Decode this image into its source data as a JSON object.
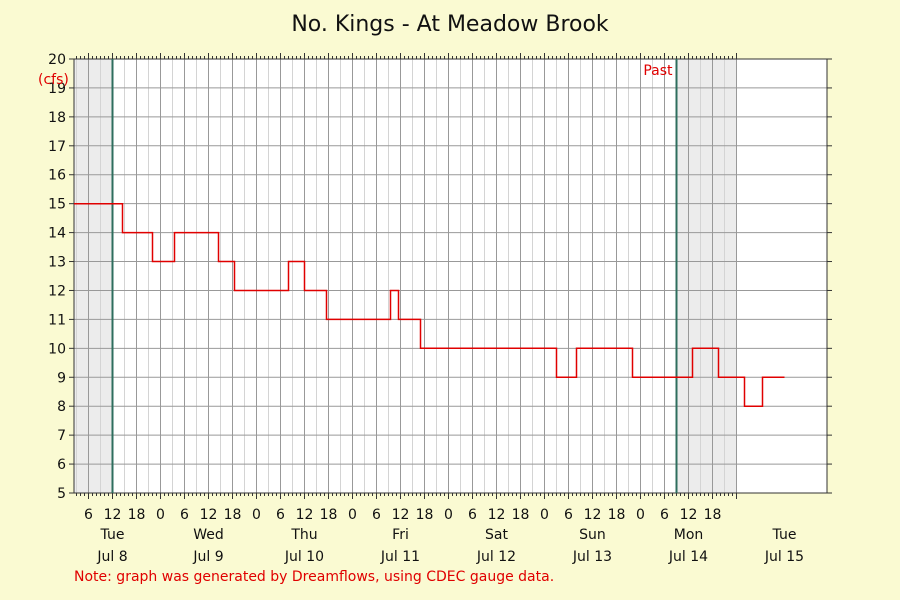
{
  "chart_data": {
    "type": "line",
    "title": "No. Kings - At Meadow Brook",
    "ylabel": "(cfs)",
    "ylim": [
      5,
      20
    ],
    "yticks": [
      5,
      6,
      7,
      8,
      9,
      10,
      11,
      12,
      13,
      14,
      15,
      16,
      17,
      18,
      19,
      20
    ],
    "xlim_hours": [
      -15,
      141
    ],
    "grid": true,
    "past_label": "Past",
    "current_markers_hours": [
      0,
      141
    ],
    "shaded_regions_hours": [
      [
        -15,
        0
      ],
      [
        141,
        156
      ]
    ],
    "hour_ticks": [
      {
        "h": -6,
        "label": "6"
      },
      {
        "h": 0,
        "label": "12"
      },
      {
        "h": 6,
        "label": "18"
      },
      {
        "h": 12,
        "label": "0"
      },
      {
        "h": 18,
        "label": "6"
      },
      {
        "h": 24,
        "label": "12"
      },
      {
        "h": 30,
        "label": "18"
      },
      {
        "h": 36,
        "label": "0"
      },
      {
        "h": 42,
        "label": "6"
      },
      {
        "h": 48,
        "label": "12"
      },
      {
        "h": 54,
        "label": "18"
      },
      {
        "h": 60,
        "label": "0"
      },
      {
        "h": 66,
        "label": "6"
      },
      {
        "h": 72,
        "label": "12"
      },
      {
        "h": 78,
        "label": "18"
      },
      {
        "h": 84,
        "label": "0"
      },
      {
        "h": 90,
        "label": "6"
      },
      {
        "h": 96,
        "label": "12"
      },
      {
        "h": 102,
        "label": "18"
      },
      {
        "h": 108,
        "label": "0"
      },
      {
        "h": 114,
        "label": "6"
      },
      {
        "h": 120,
        "label": "12"
      },
      {
        "h": 126,
        "label": "18"
      },
      {
        "h": 132,
        "label": "0"
      },
      {
        "h": 138,
        "label": "6"
      },
      {
        "h": 144,
        "label": "12"
      },
      {
        "h": 150,
        "label": "18"
      }
    ],
    "day_labels": [
      {
        "h": 0,
        "day": "Tue",
        "date": "Jul 8"
      },
      {
        "h": 24,
        "day": "Wed",
        "date": "Jul 9"
      },
      {
        "h": 48,
        "day": "Thu",
        "date": "Jul 10"
      },
      {
        "h": 72,
        "day": "Fri",
        "date": "Jul 11"
      },
      {
        "h": 96,
        "day": "Sat",
        "date": "Jul 12"
      },
      {
        "h": 120,
        "day": "Sun",
        "date": "Jul 13"
      },
      {
        "h": 144,
        "day": "Mon",
        "date": "Jul 14"
      },
      {
        "h": 168,
        "day": "Tue",
        "date": "Jul 15"
      }
    ],
    "series": [
      {
        "color": "#e00000",
        "points": [
          [
            -15,
            15
          ],
          [
            2.5,
            15
          ],
          [
            2.5,
            14
          ],
          [
            10,
            14
          ],
          [
            10,
            13
          ],
          [
            15.5,
            13
          ],
          [
            15.5,
            14
          ],
          [
            26.5,
            14
          ],
          [
            26.5,
            13
          ],
          [
            30.5,
            13
          ],
          [
            30.5,
            12
          ],
          [
            44,
            12
          ],
          [
            44,
            13
          ],
          [
            48,
            13
          ],
          [
            48,
            12
          ],
          [
            53.5,
            12
          ],
          [
            53.5,
            11
          ],
          [
            69.5,
            11
          ],
          [
            69.5,
            12
          ],
          [
            71.5,
            12
          ],
          [
            71.5,
            11
          ],
          [
            77,
            11
          ],
          [
            77,
            10
          ],
          [
            111,
            10
          ],
          [
            111,
            9
          ],
          [
            116,
            9
          ],
          [
            116,
            10
          ],
          [
            130,
            10
          ],
          [
            130,
            9
          ],
          [
            145,
            9
          ],
          [
            145,
            10
          ],
          [
            151.5,
            10
          ],
          [
            151.5,
            9
          ],
          [
            158,
            9
          ],
          [
            158,
            8
          ],
          [
            162.5,
            8
          ],
          [
            162.5,
            9
          ],
          [
            168,
            9
          ]
        ]
      }
    ]
  },
  "note": "Note: graph was generated by Dreamflows, using CDEC gauge data."
}
